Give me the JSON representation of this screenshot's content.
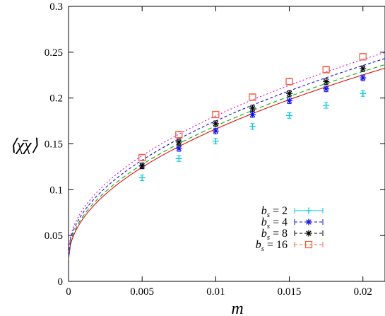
{
  "chart_data": {
    "type": "scatter",
    "title": "",
    "xlabel": "m",
    "ylabel": "⟨χ̄χ⟩",
    "xlim": [
      0,
      0.0215
    ],
    "ylim": [
      0,
      0.3
    ],
    "xticks": [
      0,
      0.005,
      0.01,
      0.015,
      0.02
    ],
    "xtick_labels": [
      "0",
      "0.005",
      "0.01",
      "0.015",
      "0.02"
    ],
    "yticks": [
      0,
      0.05,
      0.1,
      0.15,
      0.2,
      0.25,
      0.3
    ],
    "ytick_labels": [
      "0",
      "0.05",
      "0.1",
      "0.15",
      "0.2",
      "0.25",
      "0.3"
    ],
    "grid": false,
    "legend_position": "bottom-right",
    "x": [
      0.005,
      0.0075,
      0.01,
      0.0125,
      0.015,
      0.0175,
      0.02
    ],
    "series": [
      {
        "name": "b_s = 2",
        "name_base": "b",
        "name_sub": "s",
        "name_rest": " = 2",
        "color": "#00c8d8",
        "marker": "plus",
        "line_color": "#e01010",
        "line_dash": "",
        "values": [
          0.113,
          0.134,
          0.153,
          0.169,
          0.181,
          0.192,
          0.205
        ],
        "fit_a": 0.0237,
        "fit_b": 1.425
      },
      {
        "name": "b_s = 4",
        "name_base": "b",
        "name_sub": "s",
        "name_rest": " = 4",
        "color": "#1010e0",
        "marker": "asterisk",
        "line_color": "#00b000",
        "line_dash": "6,4",
        "values": [
          0.126,
          0.145,
          0.164,
          0.182,
          0.197,
          0.21,
          0.222
        ],
        "fit_a": 0.026,
        "fit_b": 1.435
      },
      {
        "name": "b_s = 8",
        "name_base": "b",
        "name_sub": "s",
        "name_rest": " = 8",
        "color": "#000000",
        "marker": "asterisk",
        "line_color": "#1010e0",
        "line_dash": "4,3",
        "values": [
          0.126,
          0.152,
          0.172,
          0.189,
          0.205,
          0.218,
          0.232
        ],
        "fit_a": 0.029,
        "fit_b": 1.46
      },
      {
        "name": "b_s = 16",
        "name_base": "b",
        "name_sub": "s",
        "name_rest": " = 16",
        "color": "#f06040",
        "marker": "square",
        "line_color": "#e000e0",
        "line_dash": "2,3",
        "values": [
          0.135,
          0.16,
          0.182,
          0.201,
          0.218,
          0.231,
          0.245
        ],
        "fit_a": 0.032,
        "fit_b": 1.485
      }
    ]
  }
}
